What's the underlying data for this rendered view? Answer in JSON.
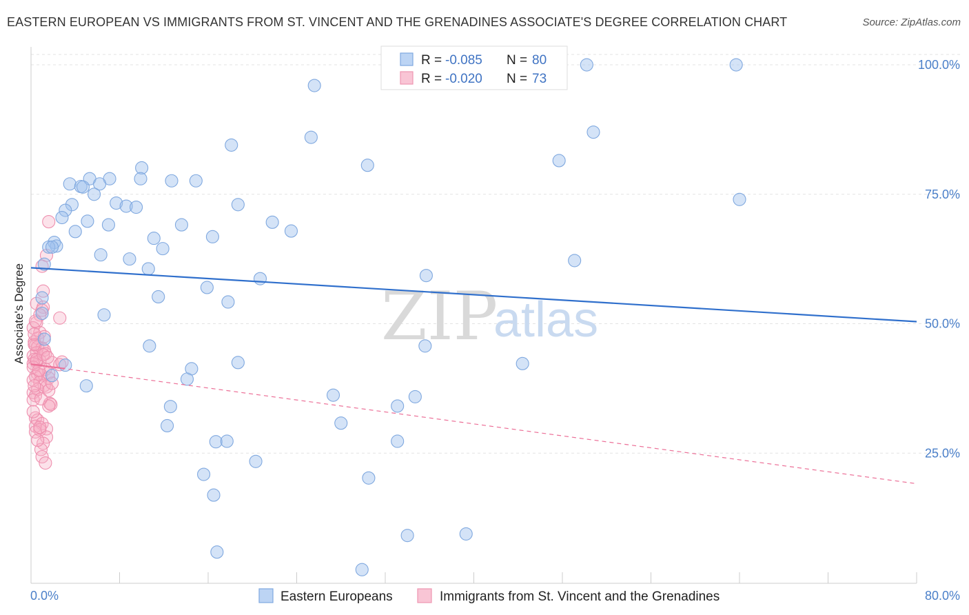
{
  "title": "EASTERN EUROPEAN VS IMMIGRANTS FROM ST. VINCENT AND THE GRENADINES ASSOCIATE'S DEGREE CORRELATION CHART",
  "source": "Source: ZipAtlas.com",
  "watermark": {
    "zip": "ZIP",
    "atlas": "atlas"
  },
  "legend": {
    "rows": [
      {
        "r_label": "R = ",
        "r_value": "-0.085",
        "n_label": "N = ",
        "n_value": "80"
      },
      {
        "r_label": "R = ",
        "r_value": "-0.020",
        "n_label": "N = ",
        "n_value": "73"
      }
    ]
  },
  "chart_data": {
    "type": "scatter",
    "title": "EASTERN EUROPEAN VS IMMIGRANTS FROM ST. VINCENT AND THE GRENADINES ASSOCIATE'S DEGREE CORRELATION CHART",
    "xlabel": "",
    "ylabel": "Associate's Degree",
    "xlim": [
      0,
      80
    ],
    "ylim": [
      0,
      102
    ],
    "x_tick_labels": [
      "0.0%",
      "80.0%"
    ],
    "y_ticks": [
      25,
      50,
      75,
      100
    ],
    "y_tick_labels": [
      "25.0%",
      "50.0%",
      "75.0%",
      "100.0%"
    ],
    "grid": true,
    "series": [
      {
        "name": "Eastern Europeans",
        "color": "#6fa0e0",
        "trend": {
          "x": [
            0,
            80
          ],
          "y": [
            60.8,
            50.4
          ]
        },
        "points": [
          [
            50.2,
            100
          ],
          [
            63.7,
            100
          ],
          [
            25.6,
            96
          ],
          [
            50.8,
            87
          ],
          [
            25.3,
            86
          ],
          [
            18.1,
            84.5
          ],
          [
            47.7,
            81.5
          ],
          [
            30.4,
            80.6
          ],
          [
            10.0,
            80.1
          ],
          [
            5.3,
            78
          ],
          [
            7.1,
            78
          ],
          [
            9.9,
            78
          ],
          [
            12.7,
            77.6
          ],
          [
            14.9,
            77.6
          ],
          [
            3.5,
            77
          ],
          [
            4.5,
            76.5
          ],
          [
            6.2,
            77
          ],
          [
            4.7,
            76.4
          ],
          [
            5.7,
            75
          ],
          [
            64.0,
            74
          ],
          [
            7.7,
            73.3
          ],
          [
            18.7,
            73
          ],
          [
            8.6,
            72.7
          ],
          [
            9.5,
            72.5
          ],
          [
            3.7,
            73
          ],
          [
            3.1,
            71.9
          ],
          [
            2.8,
            70.5
          ],
          [
            5.1,
            69.8
          ],
          [
            21.8,
            69.6
          ],
          [
            7.0,
            69.1
          ],
          [
            13.6,
            69.1
          ],
          [
            23.5,
            67.9
          ],
          [
            4.0,
            67.8
          ],
          [
            11.1,
            66.5
          ],
          [
            16.4,
            66.8
          ],
          [
            2.1,
            65.7
          ],
          [
            2.3,
            65
          ],
          [
            1.6,
            64.8
          ],
          [
            1.9,
            64.8
          ],
          [
            11.9,
            64.5
          ],
          [
            6.3,
            63.3
          ],
          [
            8.9,
            62.5
          ],
          [
            49.1,
            62.2
          ],
          [
            1.2,
            61.5
          ],
          [
            10.6,
            60.6
          ],
          [
            20.7,
            58.7
          ],
          [
            35.7,
            59.3
          ],
          [
            15.9,
            57
          ],
          [
            11.5,
            55.2
          ],
          [
            17.8,
            54.2
          ],
          [
            1.0,
            55
          ],
          [
            1.0,
            52
          ],
          [
            6.6,
            51.7
          ],
          [
            10.7,
            45.7
          ],
          [
            35.6,
            45.7
          ],
          [
            18.7,
            42.5
          ],
          [
            44.4,
            42.3
          ],
          [
            14.5,
            41.3
          ],
          [
            14.1,
            39.3
          ],
          [
            27.3,
            36.2
          ],
          [
            34.7,
            35.9
          ],
          [
            33.1,
            34.1
          ],
          [
            12.6,
            34
          ],
          [
            28.0,
            30.8
          ],
          [
            12.3,
            30.3
          ],
          [
            16.7,
            27.2
          ],
          [
            17.7,
            27.3
          ],
          [
            33.1,
            27.3
          ],
          [
            20.3,
            23.4
          ],
          [
            15.6,
            20.9
          ],
          [
            30.5,
            20.2
          ],
          [
            16.5,
            16.9
          ],
          [
            34.0,
            9.1
          ],
          [
            39.3,
            9.4
          ],
          [
            16.8,
            5.9
          ],
          [
            29.9,
            2.5
          ],
          [
            1.9,
            40
          ],
          [
            3.1,
            42
          ],
          [
            5.0,
            38
          ],
          [
            1.2,
            47
          ]
        ]
      },
      {
        "name": "Immigrants from St. Vincent and the Grenadines",
        "color": "#f08cab",
        "trend": {
          "x": [
            0,
            80
          ],
          "y": [
            42.2,
            19.1
          ]
        },
        "points": [
          [
            1.6,
            69.7
          ],
          [
            1.4,
            63.2
          ],
          [
            1.0,
            61.1
          ],
          [
            1.1,
            56.3
          ],
          [
            0.5,
            53.9
          ],
          [
            1.1,
            53.2
          ],
          [
            1.0,
            52.6
          ],
          [
            0.8,
            51.7
          ],
          [
            2.6,
            51.1
          ],
          [
            0.5,
            50.2
          ],
          [
            0.2,
            49.2
          ],
          [
            0.8,
            48.3
          ],
          [
            0.6,
            47.2
          ],
          [
            0.3,
            46.5
          ],
          [
            0.4,
            45.8
          ],
          [
            0.6,
            45.5
          ],
          [
            1.0,
            45.3
          ],
          [
            1.2,
            44.9
          ],
          [
            0.5,
            44.4
          ],
          [
            1.3,
            44.2
          ],
          [
            0.2,
            43.8
          ],
          [
            0.3,
            43.1
          ],
          [
            0.8,
            42.9
          ],
          [
            0.5,
            42.6
          ],
          [
            0.2,
            42.3
          ],
          [
            1.9,
            42.5
          ],
          [
            2.6,
            42.1
          ],
          [
            2.8,
            42.6
          ],
          [
            0.2,
            41.6
          ],
          [
            1.3,
            41.2
          ],
          [
            1.6,
            40.5
          ],
          [
            0.6,
            40.3
          ],
          [
            0.9,
            40.1
          ],
          [
            0.4,
            39.8
          ],
          [
            1.6,
            39.5
          ],
          [
            0.2,
            39.1
          ],
          [
            0.8,
            38.7
          ],
          [
            1.2,
            38.1
          ],
          [
            1.4,
            37.8
          ],
          [
            0.6,
            37.3
          ],
          [
            1.6,
            37.1
          ],
          [
            0.2,
            36.7
          ],
          [
            0.4,
            36.1
          ],
          [
            0.2,
            35.3
          ],
          [
            1.7,
            34.6
          ],
          [
            1.8,
            34.4
          ],
          [
            1.6,
            34.1
          ],
          [
            0.4,
            31.8
          ],
          [
            0.6,
            31.4
          ],
          [
            1.0,
            30.7
          ],
          [
            0.4,
            30.2
          ],
          [
            1.4,
            29.7
          ],
          [
            0.8,
            29.5
          ],
          [
            0.4,
            29.1
          ],
          [
            1.4,
            28.1
          ],
          [
            1.1,
            26.9
          ],
          [
            0.9,
            25.7
          ],
          [
            1.0,
            24.3
          ],
          [
            1.3,
            23.1
          ],
          [
            0.3,
            46
          ],
          [
            0.5,
            43
          ],
          [
            0.7,
            41
          ],
          [
            1.1,
            44
          ],
          [
            0.3,
            38
          ],
          [
            0.9,
            35.5
          ],
          [
            0.2,
            33
          ],
          [
            1.5,
            43.5
          ],
          [
            0.4,
            50.5
          ],
          [
            1.2,
            47.5
          ],
          [
            0.8,
            30
          ],
          [
            0.6,
            27.5
          ],
          [
            1.9,
            38.5
          ],
          [
            0.3,
            48
          ]
        ]
      }
    ]
  }
}
